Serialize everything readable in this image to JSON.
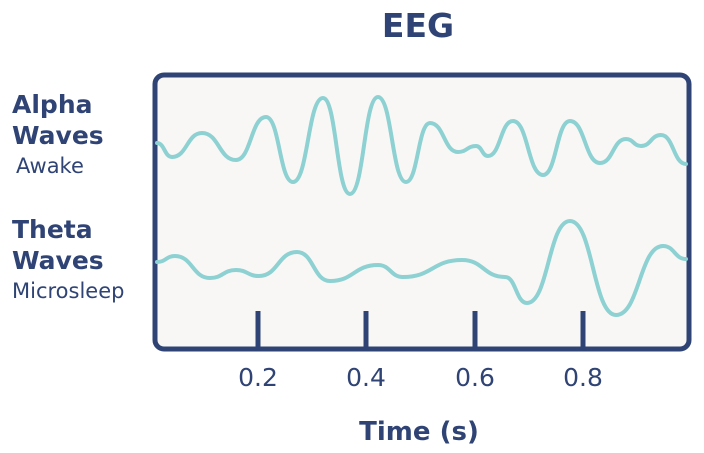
{
  "title": "EEG",
  "rows": [
    {
      "name_lines": [
        "Alpha",
        "Waves"
      ],
      "sub": "Awake"
    },
    {
      "name_lines": [
        "Theta",
        "Waves"
      ],
      "sub": "Microsleep"
    }
  ],
  "xlabel": "Time (s)",
  "ticks": [
    "0.2",
    "0.4",
    "0.6",
    "0.8"
  ],
  "colors": {
    "frame": "#2f4475",
    "wave": "#8dd1d3",
    "panel": "#f8f7f5",
    "text": "#2f4475"
  }
}
